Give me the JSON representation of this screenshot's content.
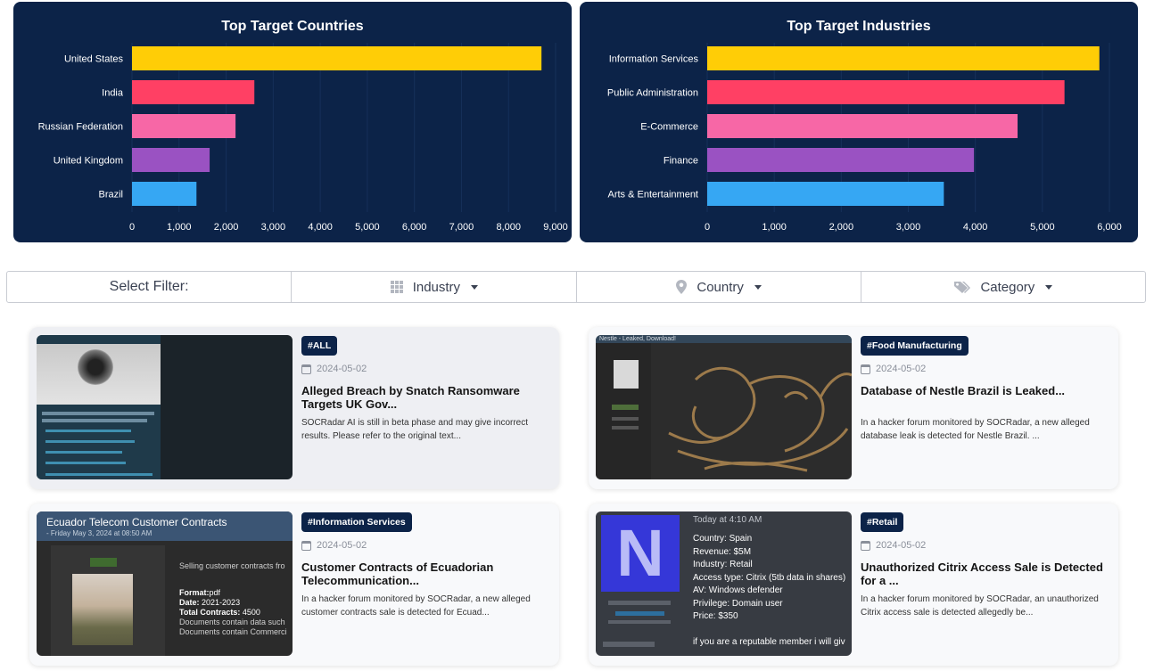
{
  "chart_data": [
    {
      "type": "bar",
      "orientation": "horizontal",
      "title": "Top Target Countries",
      "categories": [
        "United States",
        "India",
        "Russian Federation",
        "United Kingdom",
        "Brazil"
      ],
      "values": [
        8700,
        2600,
        2200,
        1650,
        1370
      ],
      "colors": [
        "#ffcd06",
        "#ff4064",
        "#f767a6",
        "#9a52c2",
        "#36a7f3"
      ],
      "xlim": [
        0,
        9000
      ],
      "xticks": [
        "0",
        "1,000",
        "2,000",
        "3,000",
        "4,000",
        "5,000",
        "6,000",
        "7,000",
        "8,000",
        "9,000"
      ],
      "legend": "none",
      "grid": true
    },
    {
      "type": "bar",
      "orientation": "horizontal",
      "title": "Top Target Industries",
      "categories": [
        "Information Services",
        "Public Administration",
        "E-Commerce",
        "Finance",
        "Arts & Entertainment"
      ],
      "values": [
        5850,
        5330,
        4630,
        3980,
        3530
      ],
      "colors": [
        "#ffcd06",
        "#ff4064",
        "#f767a6",
        "#9a52c2",
        "#36a7f3"
      ],
      "xlim": [
        0,
        6000
      ],
      "xticks": [
        "0",
        "1,000",
        "2,000",
        "3,000",
        "4,000",
        "5,000",
        "6,000"
      ],
      "legend": "none",
      "grid": true
    }
  ],
  "filter": {
    "label": "Select Filter:",
    "industry": "Industry",
    "country": "Country",
    "category": "Category"
  },
  "cards": [
    {
      "tag": "#ALL",
      "date": "2024-05-02",
      "title": "Alleged Breach by Snatch Ransomware Targets UK Gov...",
      "desc": "SOCRadar AI is still in beta phase and may give incorrect results. Please refer to the original text..."
    },
    {
      "tag": "#Food Manufacturing",
      "date": "2024-05-02",
      "title": "Database of Nestle Brazil is Leaked...",
      "desc": "In a hacker forum monitored by SOCRadar, a new alleged database leak is detected for Nestle Brazil. ...",
      "thumb": {
        "header": "Nestle - Leaked, Download!"
      }
    },
    {
      "tag": "#Information Services",
      "date": "2024-05-02",
      "title": "Customer Contracts of Ecuadorian Telecommunication...",
      "desc": "In a hacker forum monitored by SOCRadar, a new alleged customer contracts sale is detected for Ecuad...",
      "thumb": {
        "header": "Ecuador Telecom Customer Contracts",
        "sub": "- Friday May 3, 2024 at 08:50 AM",
        "selling": "Selling customer contracts fro",
        "format_label": "Format:",
        "format": "pdf",
        "date_label": "Date:",
        "date": "2021-2023",
        "total_label": "Total Contracts:",
        "total": "4500",
        "line1": "Documents contain data such",
        "line2": "Documents contain Commerci"
      }
    },
    {
      "tag": "#Retail",
      "date": "2024-05-02",
      "title": "Unauthorized Citrix Access Sale is Detected for a ...",
      "desc": "In a hacker forum monitored by SOCRadar, an unauthorized Citrix access sale is detected allegedly be...",
      "thumb": {
        "logo_letter": "N",
        "time": "Today at 4:10 AM",
        "lines": [
          "Country: Spain",
          "Revenue: $5M",
          "Industry: Retail",
          "Access type: Citrix (5tb data in shares)",
          "AV: Windows defender",
          "Privilege: Domain user",
          "Price: $350"
        ],
        "footer": "if you are a reputable member i will giv"
      }
    }
  ]
}
